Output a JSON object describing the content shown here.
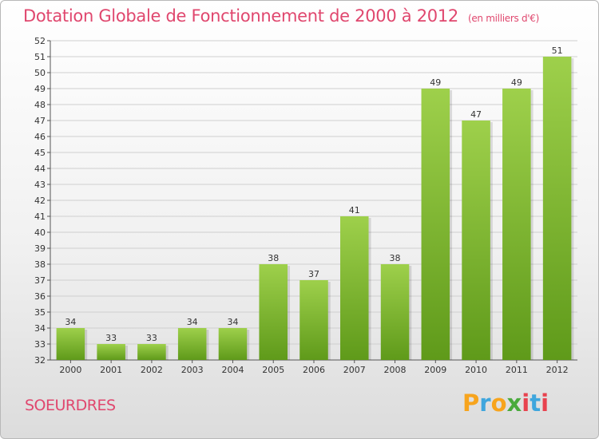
{
  "header": {
    "title": "Dotation Globale de Fonctionnement de 2000 à 2012",
    "subtitle": "(en milliers d'€)"
  },
  "footer": {
    "commune": "SOEURDRES",
    "brand_letters": [
      {
        "char": "P",
        "color": "#f7a41d"
      },
      {
        "char": "r",
        "color": "#3fa6dd"
      },
      {
        "char": "o",
        "color": "#f7a41d"
      },
      {
        "char": "x",
        "color": "#4aaa3c"
      },
      {
        "char": "i",
        "color": "#e8424e"
      },
      {
        "char": "t",
        "color": "#3fa6dd"
      },
      {
        "char": "i",
        "color": "#e8424e"
      }
    ]
  },
  "chart_data": {
    "type": "bar",
    "categories": [
      "2000",
      "2001",
      "2002",
      "2003",
      "2004",
      "2005",
      "2006",
      "2007",
      "2008",
      "2009",
      "2010",
      "2011",
      "2012"
    ],
    "values": [
      34,
      33,
      33,
      34,
      34,
      38,
      37,
      41,
      38,
      49,
      47,
      49,
      51
    ],
    "data_labels": [
      "34",
      "33",
      "33",
      "34",
      "34",
      "38",
      "37",
      "41",
      "38",
      "49",
      "47",
      "49",
      "51"
    ],
    "ylim": [
      32,
      52
    ],
    "yticks": [
      32,
      33,
      34,
      35,
      36,
      37,
      38,
      39,
      40,
      41,
      42,
      43,
      44,
      45,
      46,
      47,
      48,
      49,
      50,
      51,
      52
    ],
    "grid": true,
    "bar_color_top": "#9ed04b",
    "bar_color_bottom": "#5f9a1a"
  }
}
